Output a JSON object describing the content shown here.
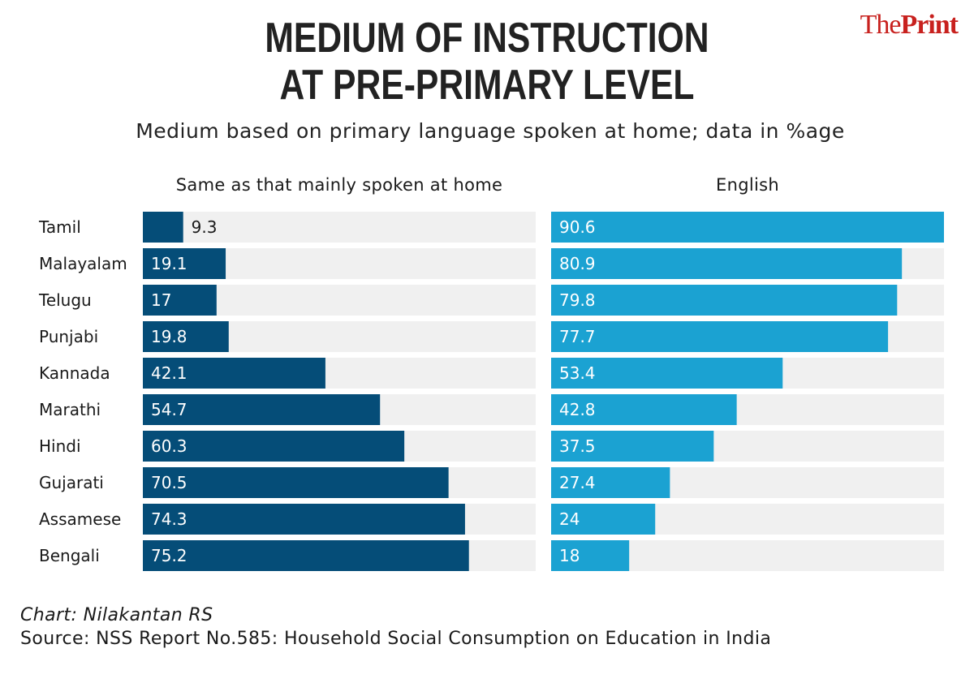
{
  "brand": {
    "part1": "The",
    "part2": "Print"
  },
  "chart_data": {
    "type": "bar",
    "title_lines": [
      "MEDIUM OF INSTRUCTION",
      "AT PRE-PRIMARY LEVEL"
    ],
    "subtitle": "Medium based on primary language spoken at home; data in %age",
    "categories": [
      "Tamil",
      "Malayalam",
      "Telugu",
      "Punjabi",
      "Kannada",
      "Marathi",
      "Hindi",
      "Gujarati",
      "Assamese",
      "Bengali"
    ],
    "series": [
      {
        "name": "Same as that mainly spoken at home",
        "values": [
          9.3,
          19.1,
          17,
          19.8,
          42.1,
          54.7,
          60.3,
          70.5,
          74.3,
          75.2
        ],
        "color": "#054d78"
      },
      {
        "name": "English",
        "values": [
          90.6,
          80.9,
          79.8,
          77.7,
          53.4,
          42.8,
          37.5,
          27.4,
          24,
          18
        ],
        "color": "#1ba2d2"
      }
    ],
    "xlim": [
      0,
      90.6
    ],
    "track_color": "#f0f0f0"
  },
  "footer": {
    "credit": "Chart: Nilakantan RS",
    "source": "Source: NSS Report No.585: Household Social Consumption on Education in India"
  }
}
